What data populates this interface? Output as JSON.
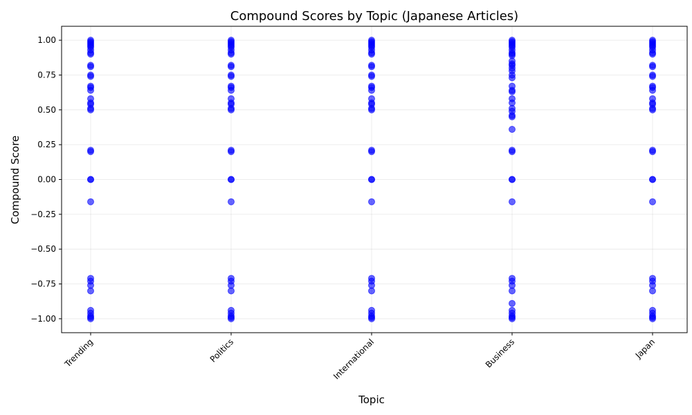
{
  "chart_data": {
    "type": "scatter",
    "title": "Compound Scores by Topic (Japanese Articles)",
    "xlabel": "Topic",
    "ylabel": "Compound Score",
    "categories": [
      "Trending",
      "Politics",
      "International",
      "Business",
      "Japan"
    ],
    "ylim": [
      -1.1,
      1.1
    ],
    "yticks": [
      -1.0,
      -0.75,
      -0.5,
      -0.25,
      0.0,
      0.25,
      0.5,
      0.75,
      1.0
    ],
    "ytick_labels": [
      "−1.00",
      "−0.75",
      "−0.50",
      "−0.25",
      "0.00",
      "0.25",
      "0.50",
      "0.75",
      "1.00"
    ],
    "grid": true,
    "point_color": "#0000ff",
    "point_alpha": 0.6,
    "series": [
      {
        "category": "Trending",
        "values": [
          1.0,
          0.99,
          0.98,
          0.97,
          0.96,
          0.95,
          0.93,
          0.91,
          0.9,
          0.82,
          0.81,
          0.75,
          0.74,
          0.67,
          0.66,
          0.64,
          0.58,
          0.55,
          0.54,
          0.51,
          0.5,
          0.21,
          0.2,
          0.0,
          0.0,
          -0.16,
          -0.71,
          -0.73,
          -0.76,
          -0.8,
          -0.94,
          -0.96,
          -0.98,
          -0.99,
          -1.0
        ]
      },
      {
        "category": "Politics",
        "values": [
          1.0,
          0.99,
          0.98,
          0.97,
          0.96,
          0.95,
          0.93,
          0.91,
          0.9,
          0.82,
          0.81,
          0.75,
          0.74,
          0.67,
          0.66,
          0.64,
          0.58,
          0.55,
          0.54,
          0.51,
          0.5,
          0.21,
          0.2,
          0.0,
          0.0,
          -0.16,
          -0.71,
          -0.73,
          -0.76,
          -0.8,
          -0.94,
          -0.96,
          -0.98,
          -0.99,
          -1.0
        ]
      },
      {
        "category": "International",
        "values": [
          1.0,
          0.99,
          0.98,
          0.97,
          0.96,
          0.95,
          0.93,
          0.91,
          0.9,
          0.82,
          0.81,
          0.75,
          0.74,
          0.67,
          0.66,
          0.64,
          0.58,
          0.55,
          0.54,
          0.51,
          0.5,
          0.21,
          0.2,
          0.0,
          0.0,
          -0.16,
          -0.71,
          -0.73,
          -0.76,
          -0.8,
          -0.94,
          -0.96,
          -0.98,
          -0.99,
          -1.0
        ]
      },
      {
        "category": "Business",
        "values": [
          1.0,
          0.99,
          0.98,
          0.97,
          0.96,
          0.95,
          0.93,
          0.91,
          0.9,
          0.89,
          0.85,
          0.83,
          0.82,
          0.8,
          0.78,
          0.75,
          0.73,
          0.67,
          0.64,
          0.63,
          0.58,
          0.55,
          0.51,
          0.49,
          0.46,
          0.45,
          0.36,
          0.21,
          0.2,
          0.0,
          0.0,
          -0.16,
          -0.71,
          -0.73,
          -0.76,
          -0.8,
          -0.89,
          -0.94,
          -0.96,
          -0.98,
          -0.99,
          -1.0
        ]
      },
      {
        "category": "Japan",
        "values": [
          1.0,
          0.99,
          0.98,
          0.97,
          0.96,
          0.95,
          0.93,
          0.91,
          0.9,
          0.82,
          0.81,
          0.75,
          0.74,
          0.67,
          0.66,
          0.64,
          0.58,
          0.55,
          0.54,
          0.51,
          0.5,
          0.21,
          0.2,
          0.0,
          0.0,
          -0.16,
          -0.71,
          -0.73,
          -0.76,
          -0.8,
          -0.94,
          -0.96,
          -0.98,
          -0.99,
          -1.0
        ]
      }
    ]
  }
}
